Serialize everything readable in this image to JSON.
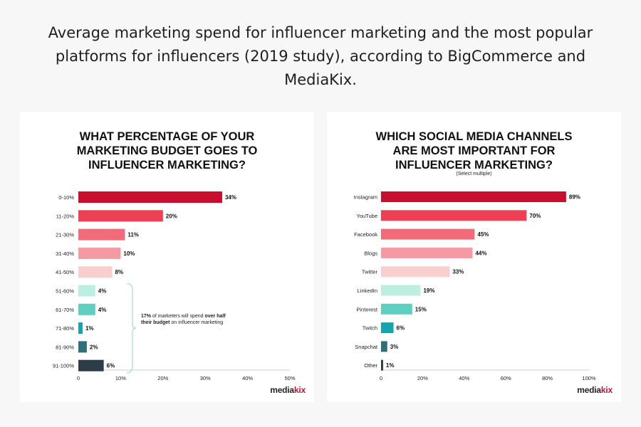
{
  "page": {
    "headline": "Average marketing spend for influencer marketing and the most popular platforms for influencers (2019 study), according to BigCommerce and MediaKix."
  },
  "brand": {
    "main": "media",
    "accent": "kix"
  },
  "chart_data": [
    {
      "type": "bar",
      "orientation": "horizontal",
      "title": "WHAT PERCENTAGE OF YOUR MARKETING BUDGET GOES TO INFLUENCER MARKETING?",
      "title_lines": [
        "WHAT PERCENTAGE OF YOUR",
        "MARKETING BUDGET GOES TO",
        "INFLUENCER MARKETING?"
      ],
      "categories": [
        "0-10%",
        "11-20%",
        "21-30%",
        "31-40%",
        "41-50%",
        "51-60%",
        "61-70%",
        "71-80%",
        "81-90%",
        "91-100%"
      ],
      "values": [
        34,
        20,
        11,
        10,
        8,
        4,
        4,
        1,
        2,
        6
      ],
      "value_labels": [
        "34%",
        "20%",
        "11%",
        "10%",
        "8%",
        "4%",
        "4%",
        "1%",
        "2%",
        "6%"
      ],
      "colors": [
        "#c8102e",
        "#ee4055",
        "#f26b78",
        "#f59aa3",
        "#f9cfcd",
        "#bdeee2",
        "#5fcfc2",
        "#15a4ad",
        "#2f6f78",
        "#2d3d47"
      ],
      "xlim": [
        0,
        50
      ],
      "xticks": [
        0,
        10,
        20,
        30,
        40,
        50
      ],
      "xtick_labels": [
        "0",
        "10%",
        "20%",
        "30%",
        "40%",
        "50%"
      ],
      "annotation": {
        "bold_start": "17%",
        "mid": " of marketers will spend ",
        "bold_end": "over half their budget",
        "end": " on influencer marketing"
      }
    },
    {
      "type": "bar",
      "orientation": "horizontal",
      "title": "WHICH SOCIAL MEDIA CHANNELS ARE MOST IMPORTANT FOR INFLUENCER MARKETING?",
      "title_lines": [
        "WHICH SOCIAL MEDIA CHANNELS",
        "ARE MOST IMPORTANT FOR",
        "INFLUENCER MARKETING?"
      ],
      "subtitle": "(Select multiple)",
      "categories": [
        "Instagram",
        "YouTube",
        "Facebook",
        "Blogs",
        "Twitter",
        "LinkedIn",
        "Pinterest",
        "Twitch",
        "Snapchat",
        "Other"
      ],
      "values": [
        89,
        70,
        45,
        44,
        33,
        19,
        15,
        6,
        3,
        1
      ],
      "value_labels": [
        "89%",
        "70%",
        "45%",
        "44%",
        "33%",
        "19%",
        "15%",
        "6%",
        "3%",
        "1%"
      ],
      "colors": [
        "#c8102e",
        "#ee4055",
        "#f26b78",
        "#f59aa3",
        "#f9cfcd",
        "#bdeee2",
        "#5fcfc2",
        "#15a4ad",
        "#2f6f78",
        "#2d3d47"
      ],
      "xlim": [
        0,
        100
      ],
      "xticks": [
        0,
        20,
        40,
        60,
        80,
        100
      ],
      "xtick_labels": [
        "0",
        "20%",
        "40%",
        "60%",
        "80%",
        "100%"
      ]
    }
  ]
}
